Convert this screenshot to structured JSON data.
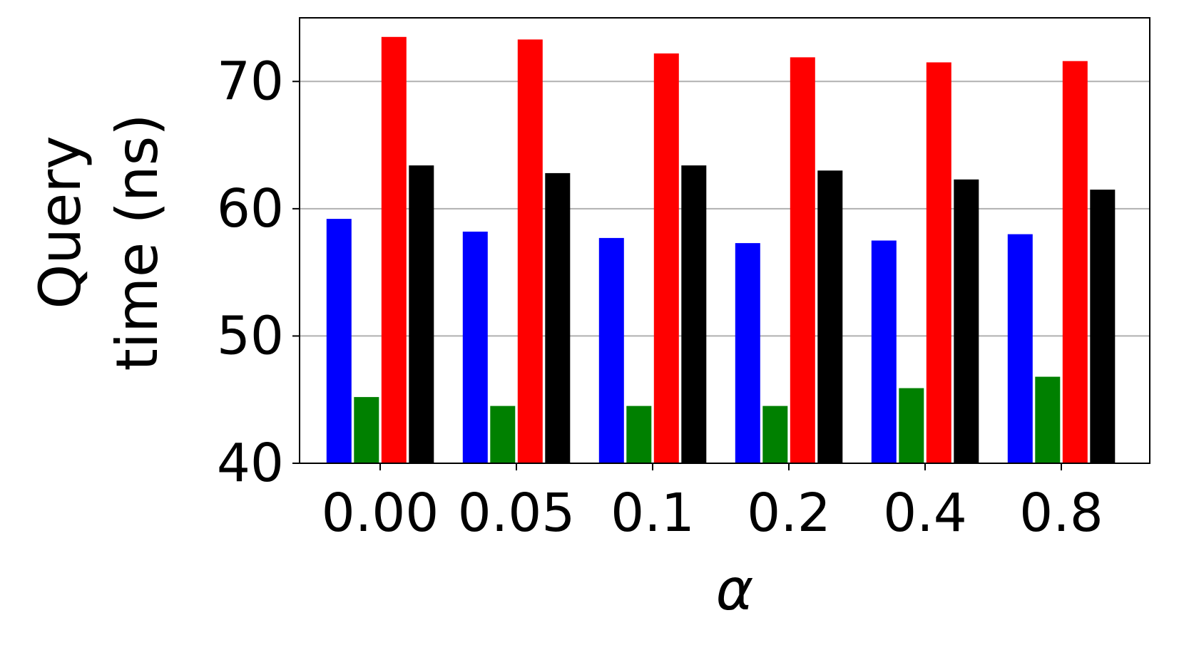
{
  "chart_data": {
    "type": "bar",
    "title": "",
    "xlabel": "α",
    "ylabel_lines": [
      "Query",
      "time (ns)"
    ],
    "categories": [
      "0.00",
      "0.05",
      "0.1",
      "0.2",
      "0.4",
      "0.8"
    ],
    "series": [
      {
        "color": "#0000ff",
        "values": [
          59.2,
          58.2,
          57.7,
          57.3,
          57.5,
          58.0
        ]
      },
      {
        "color": "#008000",
        "values": [
          45.2,
          44.5,
          44.5,
          44.5,
          45.9,
          46.8
        ]
      },
      {
        "color": "#ff0000",
        "values": [
          73.5,
          73.3,
          72.2,
          71.9,
          71.5,
          71.6
        ]
      },
      {
        "color": "#000000",
        "values": [
          63.4,
          62.8,
          63.4,
          63.0,
          62.3,
          61.5
        ]
      }
    ],
    "ylim": [
      40,
      75
    ],
    "yticks": [
      40,
      50,
      60,
      70
    ],
    "grid": "y"
  }
}
